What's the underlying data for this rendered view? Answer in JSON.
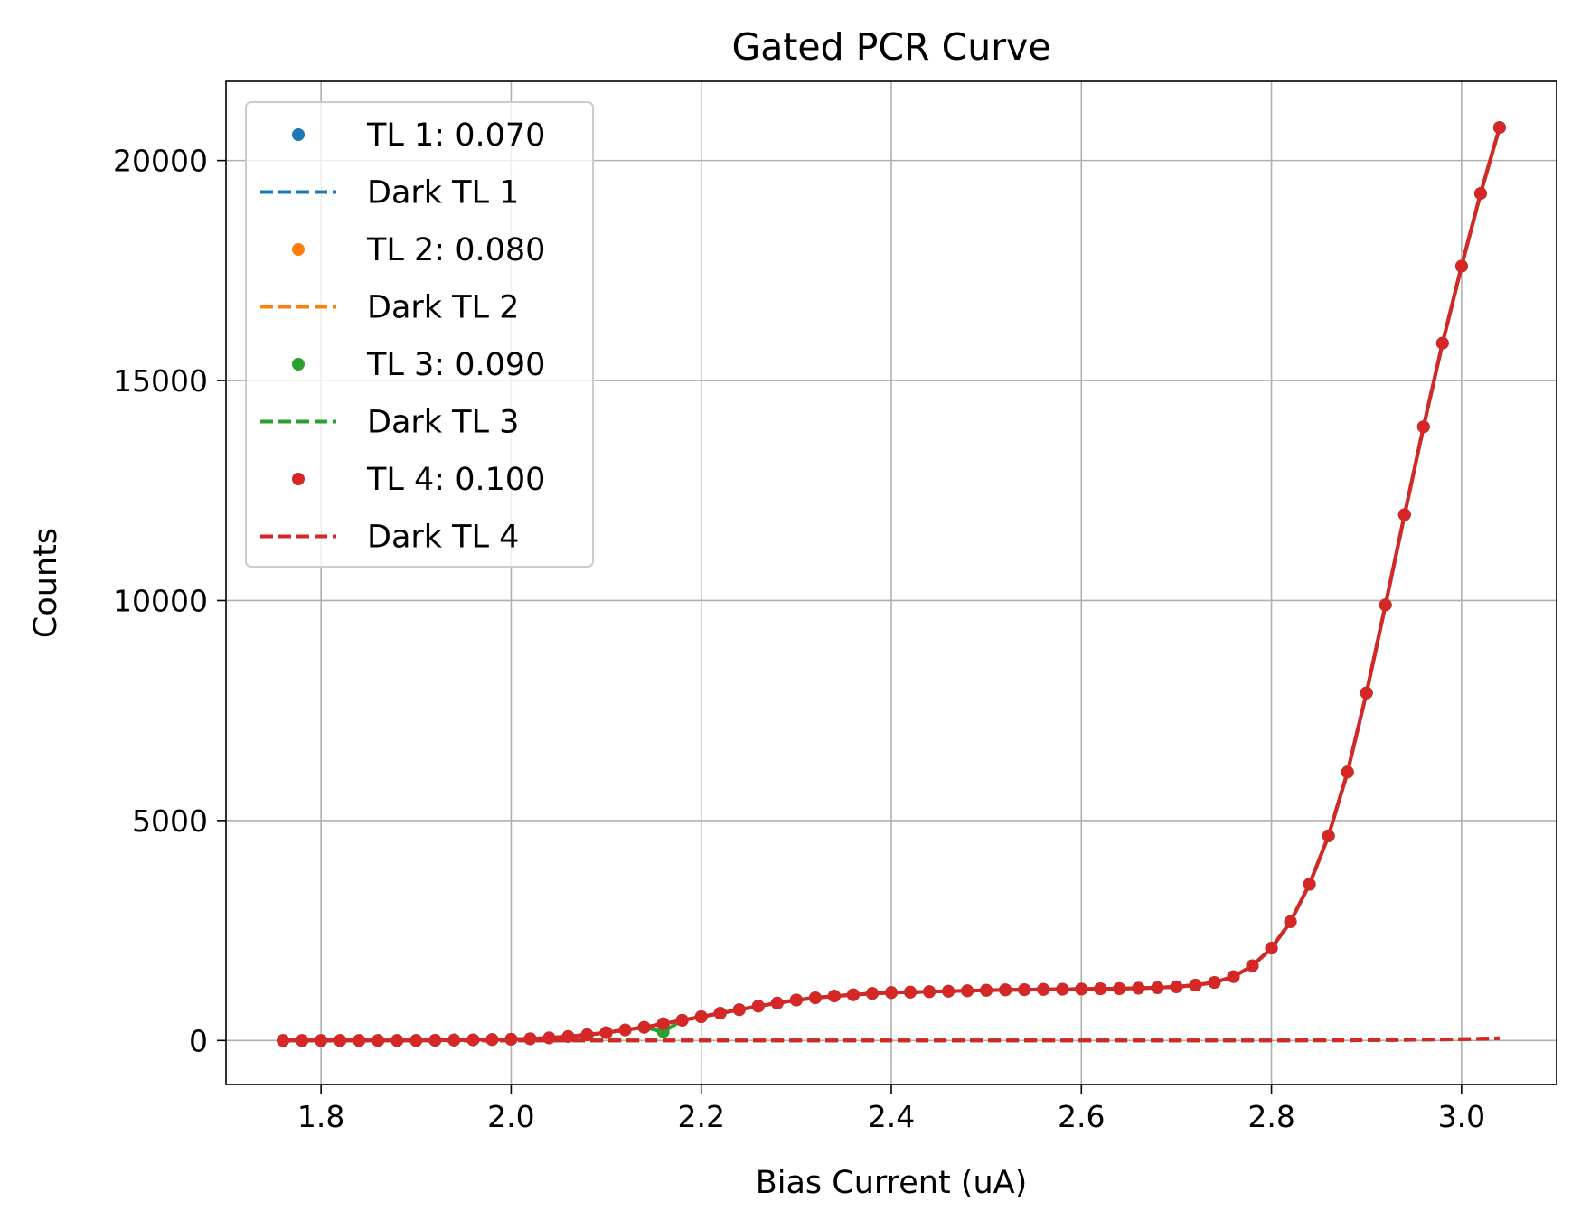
{
  "chart_data": {
    "type": "scatter",
    "title": "Gated PCR Curve",
    "xlabel": "Bias Current (uA)",
    "ylabel": "Counts",
    "xlim": [
      1.7,
      3.1
    ],
    "ylim": [
      -1000,
      21800
    ],
    "xticks": [
      1.8,
      2.0,
      2.2,
      2.4,
      2.6,
      2.8,
      3.0
    ],
    "xtick_labels": [
      "1.8",
      "2.0",
      "2.2",
      "2.4",
      "2.6",
      "2.8",
      "3.0"
    ],
    "yticks": [
      0,
      5000,
      10000,
      15000,
      20000
    ],
    "ytick_labels": [
      "0",
      "5000",
      "10000",
      "15000",
      "20000"
    ],
    "grid": true,
    "legend_position": "top-left",
    "x": [
      1.76,
      1.78,
      1.8,
      1.82,
      1.84,
      1.86,
      1.88,
      1.9,
      1.92,
      1.94,
      1.96,
      1.98,
      2.0,
      2.02,
      2.04,
      2.06,
      2.08,
      2.1,
      2.12,
      2.14,
      2.16,
      2.18,
      2.2,
      2.22,
      2.24,
      2.26,
      2.28,
      2.3,
      2.32,
      2.34,
      2.36,
      2.38,
      2.4,
      2.42,
      2.44,
      2.46,
      2.48,
      2.5,
      2.52,
      2.54,
      2.56,
      2.58,
      2.6,
      2.62,
      2.64,
      2.66,
      2.68,
      2.7,
      2.72,
      2.74,
      2.76,
      2.78,
      2.8,
      2.82,
      2.84,
      2.86,
      2.88,
      2.9,
      2.92,
      2.94,
      2.96,
      2.98,
      3.0,
      3.02,
      3.04
    ],
    "series": [
      {
        "name": "TL 1: 0.070",
        "color": "#1f77b4",
        "marker": "dot",
        "values": [
          0,
          0,
          0,
          0,
          0,
          0,
          0,
          0,
          5,
          10,
          15,
          20,
          30,
          40,
          60,
          90,
          130,
          180,
          240,
          300,
          380,
          460,
          540,
          620,
          700,
          780,
          850,
          920,
          970,
          1010,
          1040,
          1070,
          1090,
          1100,
          1110,
          1120,
          1130,
          1140,
          1150,
          1155,
          1160,
          1165,
          1170,
          1175,
          1180,
          1190,
          1200,
          1220,
          1260,
          1320,
          1450,
          1700,
          2100,
          2700,
          3550,
          4650,
          6100,
          7900,
          9900,
          11950,
          13950,
          15850,
          17600,
          19250,
          20750
        ]
      },
      {
        "name": "Dark TL 1",
        "color": "#1f77b4",
        "line": "dashed",
        "values": [
          0,
          0,
          0,
          0,
          0,
          0,
          0,
          0,
          0,
          0,
          0,
          0,
          0,
          0,
          0,
          0,
          0,
          0,
          0,
          0,
          0,
          0,
          0,
          0,
          0,
          0,
          0,
          0,
          0,
          0,
          0,
          0,
          0,
          0,
          0,
          0,
          0,
          0,
          0,
          0,
          0,
          0,
          0,
          0,
          0,
          0,
          0,
          0,
          0,
          0,
          0,
          0,
          0,
          0,
          5,
          5,
          5,
          10,
          10,
          15,
          20,
          25,
          30,
          40,
          50
        ]
      },
      {
        "name": "TL 2: 0.080",
        "color": "#ff7f0e",
        "marker": "dot",
        "values": [
          0,
          0,
          0,
          0,
          0,
          0,
          0,
          0,
          5,
          10,
          15,
          20,
          30,
          40,
          60,
          90,
          130,
          180,
          240,
          300,
          380,
          460,
          540,
          620,
          700,
          780,
          850,
          920,
          970,
          1010,
          1040,
          1070,
          1090,
          1100,
          1110,
          1120,
          1130,
          1140,
          1150,
          1155,
          1160,
          1165,
          1170,
          1175,
          1180,
          1190,
          1200,
          1220,
          1260,
          1320,
          1450,
          1700,
          2100,
          2700,
          3550,
          4650,
          6100,
          7900,
          9900,
          11950,
          13950,
          15850,
          17600,
          19250,
          20750
        ]
      },
      {
        "name": "Dark TL 2",
        "color": "#ff7f0e",
        "line": "dashed",
        "values": [
          0,
          0,
          0,
          0,
          0,
          0,
          0,
          0,
          0,
          0,
          0,
          0,
          0,
          0,
          0,
          0,
          0,
          0,
          0,
          0,
          0,
          0,
          0,
          0,
          0,
          0,
          0,
          0,
          0,
          0,
          0,
          0,
          0,
          0,
          0,
          0,
          0,
          0,
          0,
          0,
          0,
          0,
          0,
          0,
          0,
          0,
          0,
          0,
          0,
          0,
          0,
          0,
          0,
          0,
          5,
          5,
          5,
          10,
          10,
          15,
          20,
          25,
          30,
          40,
          50
        ]
      },
      {
        "name": "TL 3: 0.090",
        "color": "#2ca02c",
        "marker": "dot",
        "values": [
          0,
          0,
          0,
          0,
          0,
          0,
          0,
          0,
          5,
          10,
          15,
          20,
          30,
          40,
          60,
          90,
          130,
          180,
          240,
          300,
          200,
          460,
          540,
          620,
          700,
          780,
          850,
          920,
          970,
          1010,
          1040,
          1070,
          1090,
          1100,
          1110,
          1120,
          1130,
          1140,
          1150,
          1155,
          1160,
          1165,
          1170,
          1175,
          1180,
          1190,
          1200,
          1220,
          1260,
          1320,
          1450,
          1700,
          2100,
          2700,
          3550,
          4650,
          6100,
          7900,
          9900,
          11950,
          13950,
          15850,
          17600,
          19250,
          20750
        ]
      },
      {
        "name": "Dark TL 3",
        "color": "#2ca02c",
        "line": "dashed",
        "values": [
          0,
          0,
          0,
          0,
          0,
          0,
          0,
          0,
          0,
          0,
          0,
          0,
          0,
          0,
          0,
          0,
          0,
          0,
          0,
          0,
          0,
          0,
          0,
          0,
          0,
          0,
          0,
          0,
          0,
          0,
          0,
          0,
          0,
          0,
          0,
          0,
          0,
          0,
          0,
          0,
          0,
          0,
          0,
          0,
          0,
          0,
          0,
          0,
          0,
          0,
          0,
          0,
          0,
          0,
          5,
          5,
          5,
          10,
          10,
          15,
          20,
          25,
          30,
          40,
          50
        ]
      },
      {
        "name": "TL 4: 0.100",
        "color": "#d62728",
        "marker": "dot",
        "values": [
          0,
          0,
          0,
          0,
          0,
          0,
          0,
          0,
          5,
          10,
          15,
          20,
          30,
          40,
          60,
          90,
          130,
          180,
          240,
          300,
          380,
          460,
          540,
          620,
          700,
          780,
          850,
          920,
          970,
          1010,
          1040,
          1070,
          1090,
          1100,
          1110,
          1120,
          1130,
          1140,
          1150,
          1155,
          1160,
          1165,
          1170,
          1175,
          1180,
          1190,
          1200,
          1220,
          1260,
          1320,
          1450,
          1700,
          2100,
          2700,
          3550,
          4650,
          6100,
          7900,
          9900,
          11950,
          13950,
          15850,
          17600,
          19250,
          20750
        ]
      },
      {
        "name": "Dark TL 4",
        "color": "#d62728",
        "line": "dashed",
        "values": [
          0,
          0,
          0,
          0,
          0,
          0,
          0,
          0,
          0,
          0,
          0,
          0,
          0,
          0,
          0,
          0,
          0,
          0,
          0,
          0,
          0,
          0,
          0,
          0,
          0,
          0,
          0,
          0,
          0,
          0,
          0,
          0,
          0,
          0,
          0,
          0,
          0,
          0,
          0,
          0,
          0,
          0,
          0,
          0,
          0,
          0,
          0,
          0,
          0,
          0,
          0,
          0,
          0,
          0,
          5,
          5,
          5,
          10,
          10,
          15,
          20,
          25,
          30,
          40,
          50
        ]
      }
    ]
  }
}
